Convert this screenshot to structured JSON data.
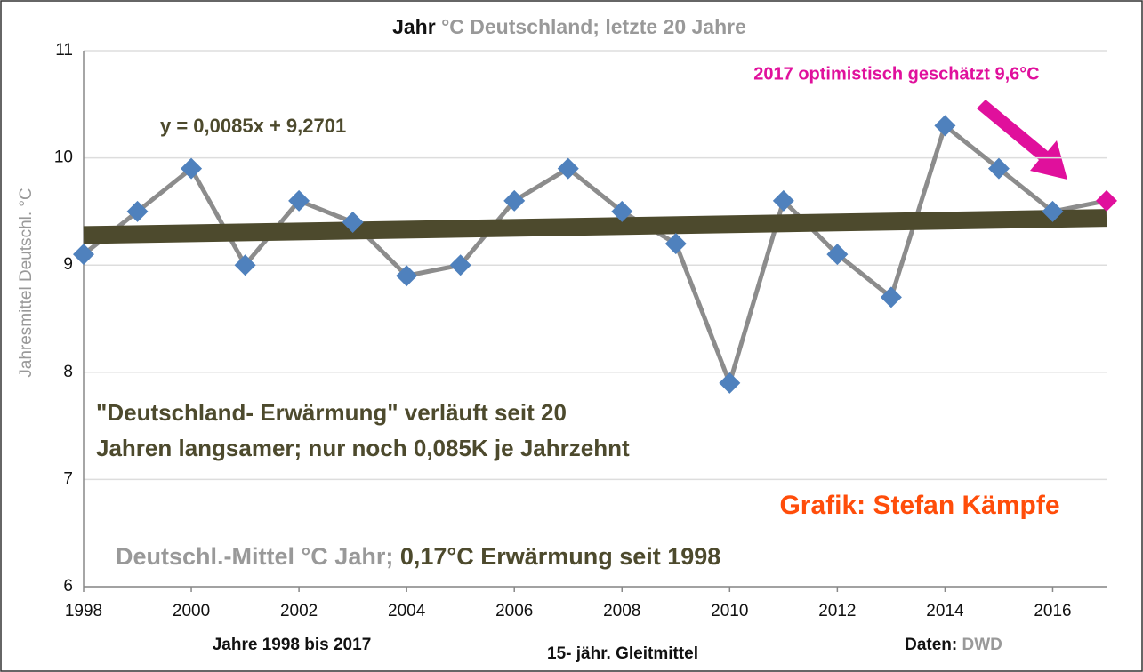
{
  "chart_data": {
    "type": "line",
    "title": {
      "main": "Jahr",
      "rest": "°C Deutschland; letzte 20 Jahre"
    },
    "y_label": "Jahresmittel Deutschl. °C",
    "x": [
      1998,
      1999,
      2000,
      2001,
      2002,
      2003,
      2004,
      2005,
      2006,
      2007,
      2008,
      2009,
      2010,
      2011,
      2012,
      2013,
      2014,
      2015,
      2016,
      2017
    ],
    "series": [
      {
        "name": "Deutschl.-Mittel °C Jahr;",
        "color": "#8c8c8c",
        "marker_colors": [
          "#4f81bd",
          "#4f81bd",
          "#4f81bd",
          "#4f81bd",
          "#4f81bd",
          "#4f81bd",
          "#4f81bd",
          "#4f81bd",
          "#4f81bd",
          "#4f81bd",
          "#4f81bd",
          "#4f81bd",
          "#4f81bd",
          "#4f81bd",
          "#4f81bd",
          "#4f81bd",
          "#4f81bd",
          "#4f81bd",
          "#4f81bd",
          "#e0109c"
        ],
        "values": [
          9.1,
          9.5,
          9.9,
          9.0,
          9.6,
          9.4,
          8.9,
          9.0,
          9.6,
          9.9,
          9.5,
          9.2,
          7.9,
          9.6,
          9.1,
          8.7,
          10.3,
          9.9,
          9.5,
          9.6
        ]
      }
    ],
    "trend": {
      "name": "0,17°C Erwärmung seit 1998",
      "color": "#4d4a2d",
      "x": [
        1998,
        2017
      ],
      "values": [
        9.28,
        9.44
      ]
    },
    "xlim": [
      1998,
      2017
    ],
    "xticks": [
      1998,
      2000,
      2002,
      2004,
      2006,
      2008,
      2010,
      2012,
      2014,
      2016
    ],
    "ylim": [
      6,
      11
    ],
    "yticks": [
      6,
      7,
      8,
      9,
      10,
      11
    ],
    "grid": true,
    "annotations": {
      "estimate": "2017 optimistisch geschätzt 9,6°C",
      "equation": "y = 0,0085x + 9,2701",
      "note_line1": "\"Deutschland- Erwärmung\" verläuft seit 20",
      "note_line2": "Jahren langsamer; nur noch 0,085K je Jahrzehnt",
      "author": "Grafik: Stefan Kämpfe",
      "x_caption": "Jahre 1998 bis 2017",
      "smoothing": "15- jähr. Gleitmittel",
      "source_label": "Daten:",
      "source": "DWD"
    }
  }
}
